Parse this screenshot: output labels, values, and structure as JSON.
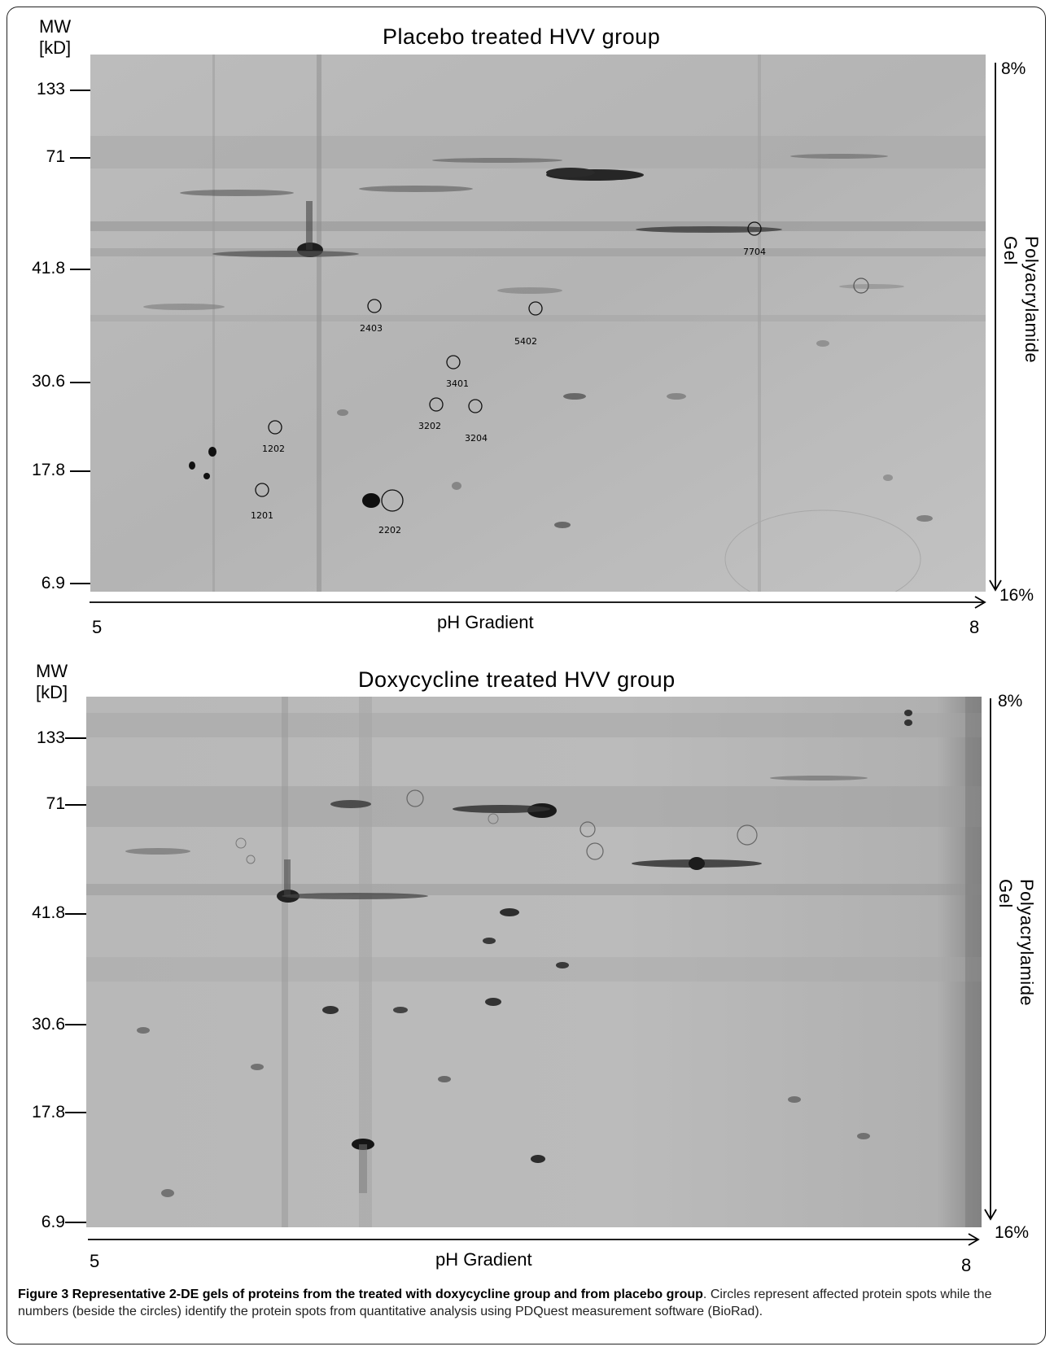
{
  "panel_top": {
    "title": "Placebo treated HVV group",
    "mw_label_line1": "MW",
    "mw_label_line2": "[kD]",
    "mw_ticks": [
      "133",
      "71",
      "41.8",
      "30.6",
      "17.8",
      "6.9"
    ],
    "gradient_top": "8%",
    "gradient_bottom": "16%",
    "vertical_label": "Polyacrylamide Gel",
    "x_label": "pH Gradient",
    "x_start": "5",
    "x_end": "8",
    "spots": [
      "7704",
      "2403",
      "5402",
      "3401",
      "3202",
      "3204",
      "1202",
      "1201",
      "2202"
    ]
  },
  "panel_bottom": {
    "title": "Doxycycline treated HVV group",
    "mw_label_line1": "MW",
    "mw_label_line2": "[kD]",
    "mw_ticks": [
      "133",
      "71",
      "41.8",
      "30.6",
      "17.8",
      "6.9"
    ],
    "gradient_top": "8%",
    "gradient_bottom": "16%",
    "vertical_label": "Polyacrylamide Gel",
    "x_label": "pH Gradient",
    "x_start": "5",
    "x_end": "8"
  },
  "caption": {
    "bold": "Figure 3 Representative 2-DE gels of proteins from the treated with doxycycline group and from placebo group",
    "text": ". Circles represent affected protein spots while the numbers (beside the circles) identify the protein spots from quantitative analysis using PDQuest measurement software (BioRad)."
  }
}
